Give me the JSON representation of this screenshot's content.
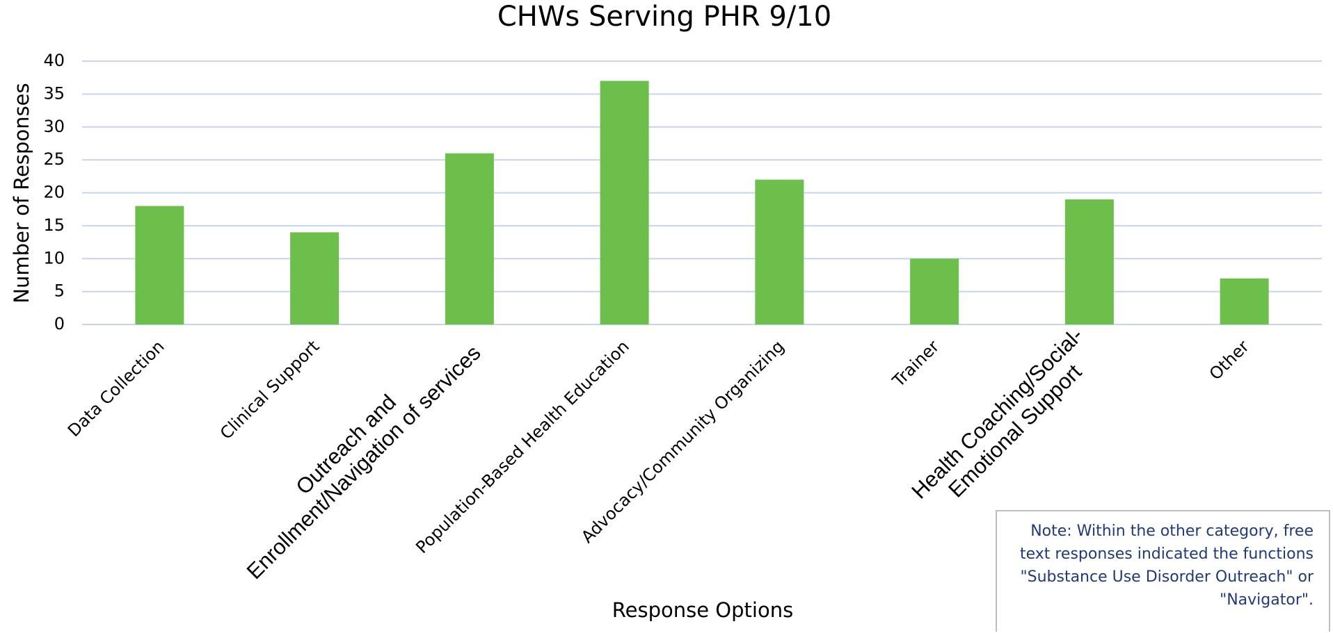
{
  "chart_data": {
    "type": "bar",
    "title": "CHWs Serving PHR 9/10",
    "x_label": "Response Options",
    "y_label": "Number of Responses",
    "categories": [
      "Data Collection",
      "Clinical Support",
      "Outreach and\nEnrollment/Navigation of services",
      "Population-Based Health Education",
      "Advocacy/Community Organizing",
      "Trainer",
      "Health Coaching/Social-\nEmotional Support",
      "Other"
    ],
    "values": [
      18,
      14,
      26,
      37,
      22,
      10,
      19,
      7
    ],
    "color": "#6dbf4b",
    "ylim": [
      0,
      40
    ],
    "yticks": [
      0,
      5,
      10,
      15,
      20,
      25,
      30,
      35,
      40
    ],
    "grid": true,
    "note": "Note: Within the other category, free text responses indicated the functions \"Substance Use Disorder Outreach\" or \"Navigator\"."
  }
}
